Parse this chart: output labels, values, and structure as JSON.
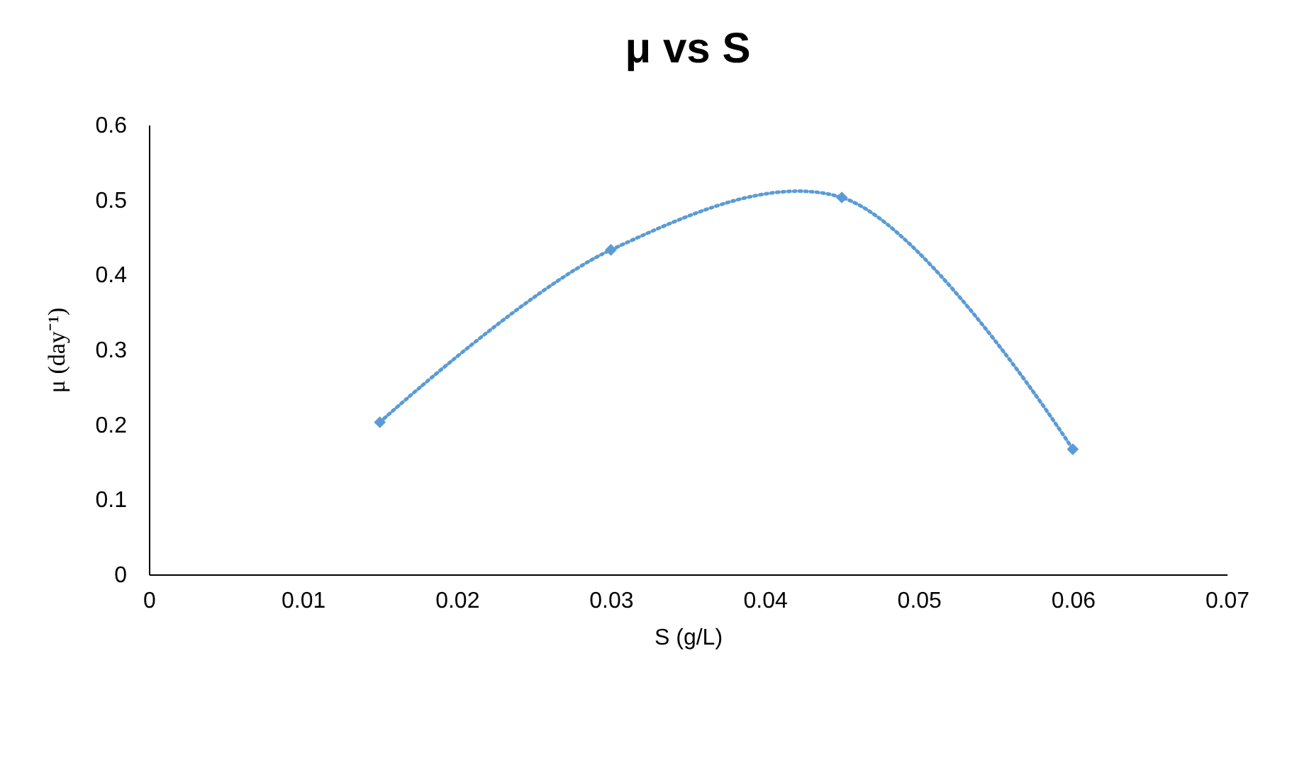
{
  "chart_data": {
    "type": "line",
    "title": "μ vs S",
    "xlabel": "S (g/L)",
    "ylabel": "μ (day⁻¹)",
    "x": [
      0.015,
      0.03,
      0.045,
      0.06
    ],
    "series": [
      {
        "color": "#5b9bd5",
        "values": [
          0.203,
          0.433,
          0.503,
          0.167
        ]
      }
    ],
    "xlim": [
      0,
      0.07
    ],
    "xticks": [
      0,
      0.01,
      0.02,
      0.03,
      0.04,
      0.05,
      0.06,
      0.07
    ],
    "ylim": [
      0,
      0.6
    ],
    "yticks": [
      0,
      0.1,
      0.2,
      0.3,
      0.4,
      0.5,
      0.6
    ],
    "marker": "diamond",
    "line_style": "dotted"
  }
}
